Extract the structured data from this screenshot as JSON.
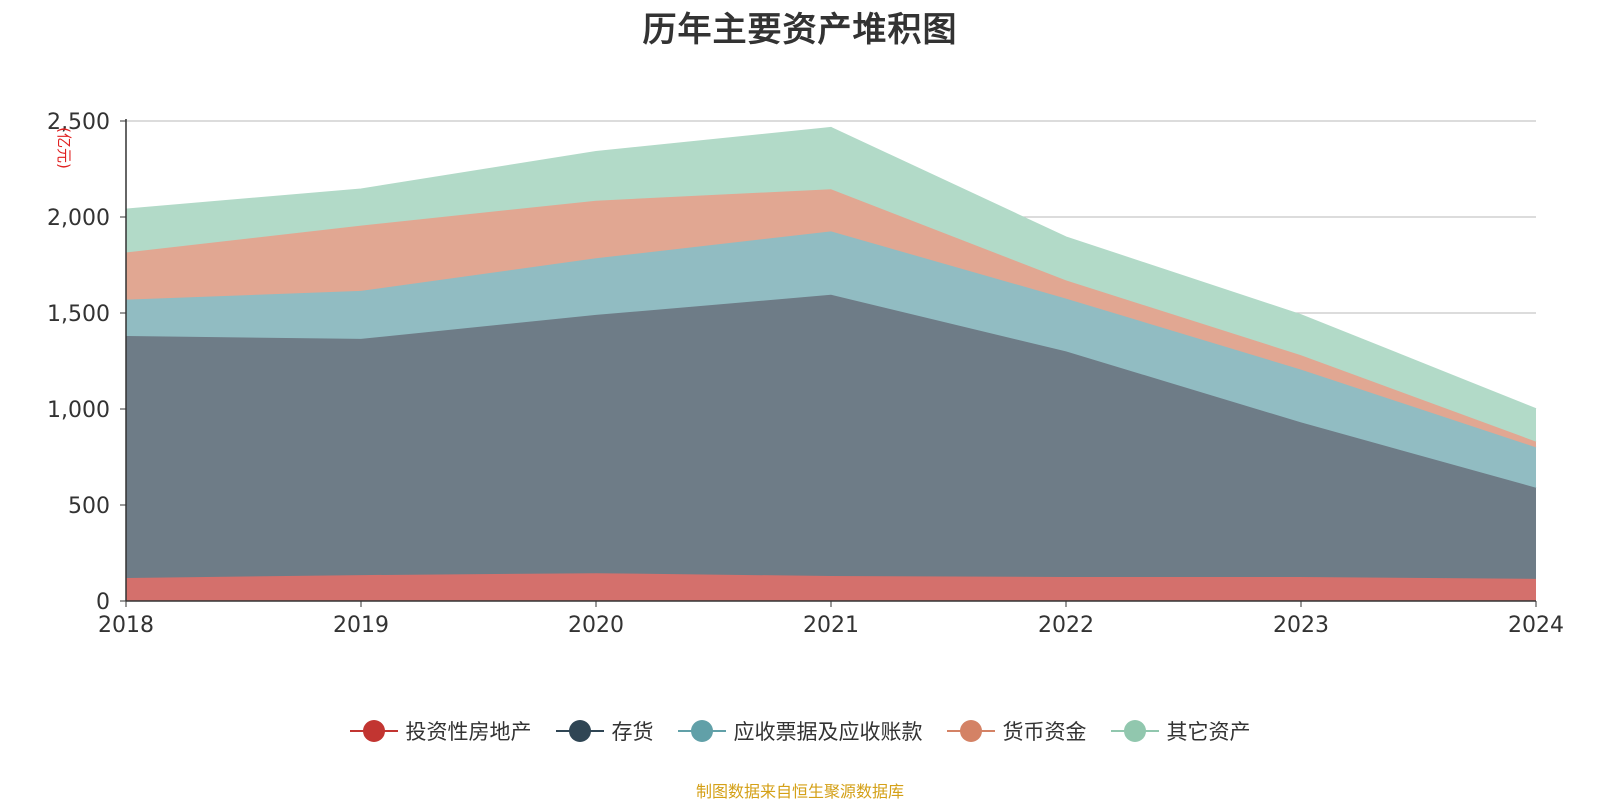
{
  "chart_data": {
    "type": "area",
    "stacked": true,
    "title": "历年主要资产堆积图",
    "unit_label": "(亿元)",
    "x": [
      "2018",
      "2019",
      "2020",
      "2021",
      "2022",
      "2023",
      "2024"
    ],
    "ylim": [
      0,
      2500
    ],
    "yticks": [
      0,
      500,
      1000,
      1500,
      2000,
      2500
    ],
    "ytick_labels": [
      "0",
      "500",
      "1,000",
      "1,500",
      "2,000",
      "2,500"
    ],
    "grid": true,
    "legend_position": "bottom",
    "series": [
      {
        "name": "投资性房地产",
        "color": "#c23531",
        "fill": "#d4706c",
        "values": [
          120,
          135,
          145,
          130,
          125,
          125,
          115
        ]
      },
      {
        "name": "存货",
        "color": "#2f4554",
        "fill": "#6e7c87",
        "values": [
          1260,
          1230,
          1345,
          1465,
          1175,
          805,
          475
        ]
      },
      {
        "name": "应收票据及应收账款",
        "color": "#61a0a8",
        "fill": "#91bcc2",
        "values": [
          190,
          250,
          295,
          330,
          275,
          275,
          210
        ]
      },
      {
        "name": "货币资金",
        "color": "#d48265",
        "fill": "#e1a792",
        "values": [
          245,
          340,
          300,
          220,
          95,
          75,
          30
        ]
      },
      {
        "name": "其它资产",
        "color": "#91c7ae",
        "fill": "#b2dac8",
        "values": [
          225,
          190,
          255,
          320,
          225,
          210,
          170
        ]
      }
    ]
  },
  "source_note": "制图数据来自恒生聚源数据库"
}
